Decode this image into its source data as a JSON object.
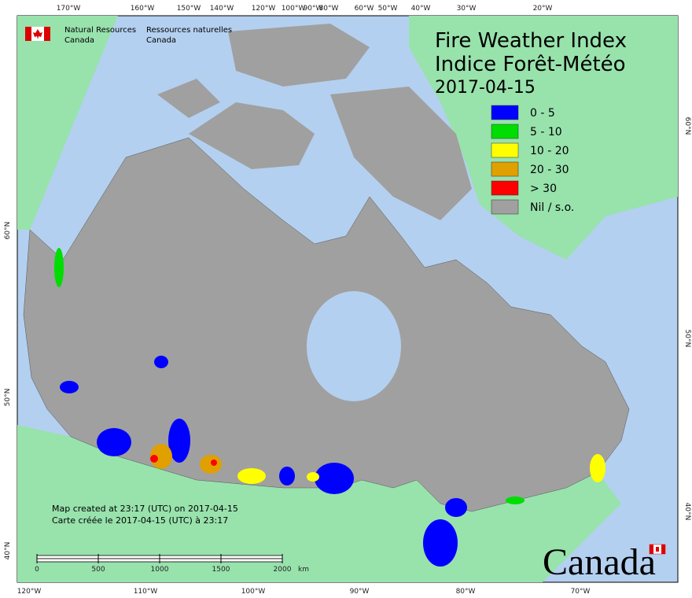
{
  "header": {
    "agency_en": "Natural Resources",
    "agency_en2": "Canada",
    "agency_fr": "Ressources naturelles",
    "agency_fr2": "Canada"
  },
  "title": {
    "line1": "Fire Weather Index",
    "line2": "Indice Forêt-Météo",
    "date": "2017-04-15"
  },
  "legend": [
    {
      "label": "0 - 5",
      "color": "#0000ff"
    },
    {
      "label": "5 - 10",
      "color": "#00dd00"
    },
    {
      "label": "10 - 20",
      "color": "#ffff00"
    },
    {
      "label": "20 - 30",
      "color": "#e0a000"
    },
    {
      "label": "> 30",
      "color": "#ff0000"
    },
    {
      "label": "Nil / s.o.",
      "color": "#a0a0a0"
    }
  ],
  "graticule": {
    "top": [
      "170°W",
      "160°W",
      "150°W",
      "140°W",
      "120°W",
      "100°W",
      "90°W",
      "80°W",
      "60°W",
      "50°W",
      "40°W",
      "30°W",
      "20°W"
    ],
    "bottom": [
      "120°W",
      "110°W",
      "100°W",
      "90°W",
      "80°W",
      "70°W"
    ],
    "left": [
      "60°N",
      "50°N",
      "40°N"
    ],
    "right": [
      "60°N",
      "50°N",
      "40°N"
    ]
  },
  "credits": {
    "en": "Map created at 23:17 (UTC) on 2017-04-15",
    "fr": "Carte créée le 2017-04-15 (UTC) à 23:17"
  },
  "scale_bar": {
    "ticks": [
      0,
      500,
      1000,
      1500,
      2000
    ],
    "unit": "km"
  },
  "wordmark": "Canada"
}
